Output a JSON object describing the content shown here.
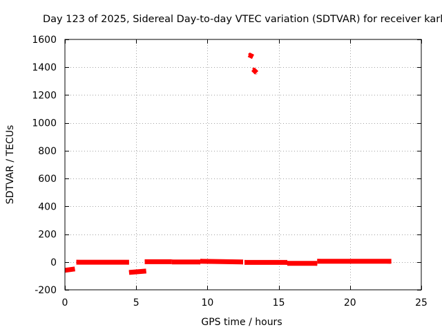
{
  "chart_data": {
    "type": "scatter",
    "title": "Day 123 of 2025, Sidereal Day-to-day VTEC variation (SDTVAR) for receiver karl",
    "xlabel": "GPS time / hours",
    "ylabel": "SDTVAR / TECUs",
    "xlim": [
      0,
      25
    ],
    "ylim": [
      -200,
      1600
    ],
    "xticks": [
      0,
      5,
      10,
      15,
      20,
      25
    ],
    "xtick_labels": [
      "0",
      "5",
      "10",
      "15",
      "20",
      "25"
    ],
    "yticks": [
      -200,
      0,
      200,
      400,
      600,
      800,
      1000,
      1200,
      1400,
      1600
    ],
    "ytick_labels": [
      "-200",
      "0",
      "200",
      "400",
      "600",
      "800",
      "1000",
      "1200",
      "1400",
      "1600"
    ],
    "grid": true,
    "legend": "none",
    "series_color": "#ff0000",
    "segments": [
      {
        "x_start": 0.0,
        "x_end": 0.7,
        "y_start": -60,
        "y_end": -50
      },
      {
        "x_start": 0.8,
        "x_end": 4.5,
        "y_start": -2,
        "y_end": -2
      },
      {
        "x_start": 4.5,
        "x_end": 5.7,
        "y_start": -75,
        "y_end": -65
      },
      {
        "x_start": 5.6,
        "x_end": 7.5,
        "y_start": 2,
        "y_end": 2
      },
      {
        "x_start": 7.5,
        "x_end": 9.5,
        "y_start": 0,
        "y_end": 0
      },
      {
        "x_start": 9.5,
        "x_end": 12.5,
        "y_start": 5,
        "y_end": 0
      },
      {
        "x_start": 12.6,
        "x_end": 15.6,
        "y_start": -3,
        "y_end": -3
      },
      {
        "x_start": 15.6,
        "x_end": 17.7,
        "y_start": -10,
        "y_end": -10
      },
      {
        "x_start": 17.7,
        "x_end": 22.9,
        "y_start": 5,
        "y_end": 5
      },
      {
        "x_start": 12.9,
        "x_end": 13.2,
        "y_start": 1490,
        "y_end": 1475
      },
      {
        "x_start": 13.2,
        "x_end": 13.45,
        "y_start": 1385,
        "y_end": 1360
      }
    ]
  }
}
